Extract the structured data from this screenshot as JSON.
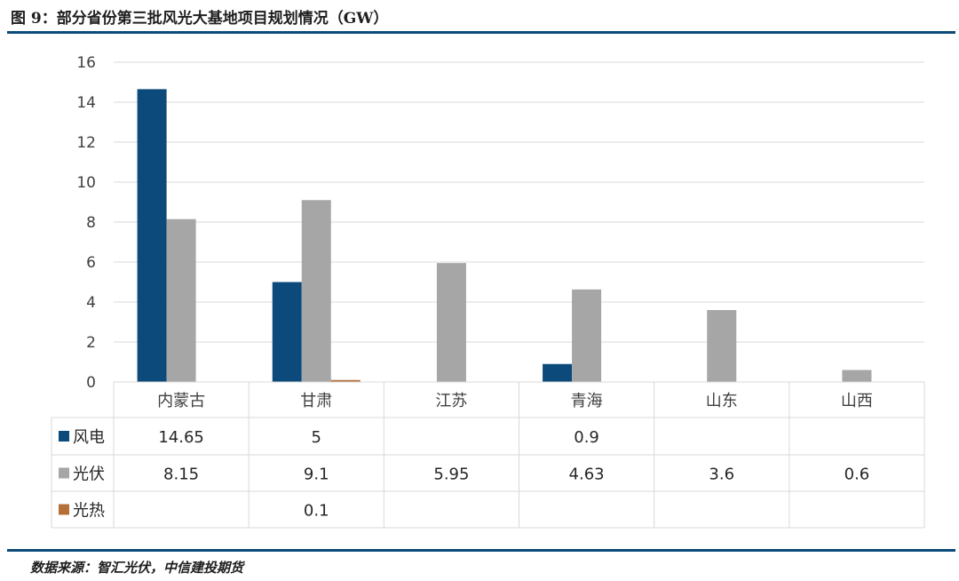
{
  "title": "图 9：部分省份第三批风光大基地项目规划情况（GW）",
  "source": "数据来源：智汇光伏，中信建投期货",
  "chart_data": {
    "type": "bar",
    "categories": [
      "内蒙古",
      "甘肃",
      "江苏",
      "青海",
      "山东",
      "山西"
    ],
    "series": [
      {
        "name": "风电",
        "color": "#0b4a7a",
        "values": [
          14.65,
          5,
          null,
          0.9,
          null,
          null
        ],
        "labels": [
          "14.65",
          "5",
          "",
          "0.9",
          "",
          ""
        ]
      },
      {
        "name": "光伏",
        "color": "#a6a6a6",
        "values": [
          8.15,
          9.1,
          5.95,
          4.63,
          3.6,
          0.6
        ],
        "labels": [
          "8.15",
          "9.1",
          "5.95",
          "4.63",
          "3.6",
          "0.6"
        ]
      },
      {
        "name": "光热",
        "color": "#b5703a",
        "values": [
          null,
          0.1,
          null,
          null,
          null,
          null
        ],
        "labels": [
          "",
          "0.1",
          "",
          "",
          "",
          ""
        ]
      }
    ],
    "ylim": [
      0,
      16
    ],
    "yticks": [
      0,
      2,
      4,
      6,
      8,
      10,
      12,
      14,
      16
    ],
    "grid": true,
    "legend": "data-table"
  }
}
